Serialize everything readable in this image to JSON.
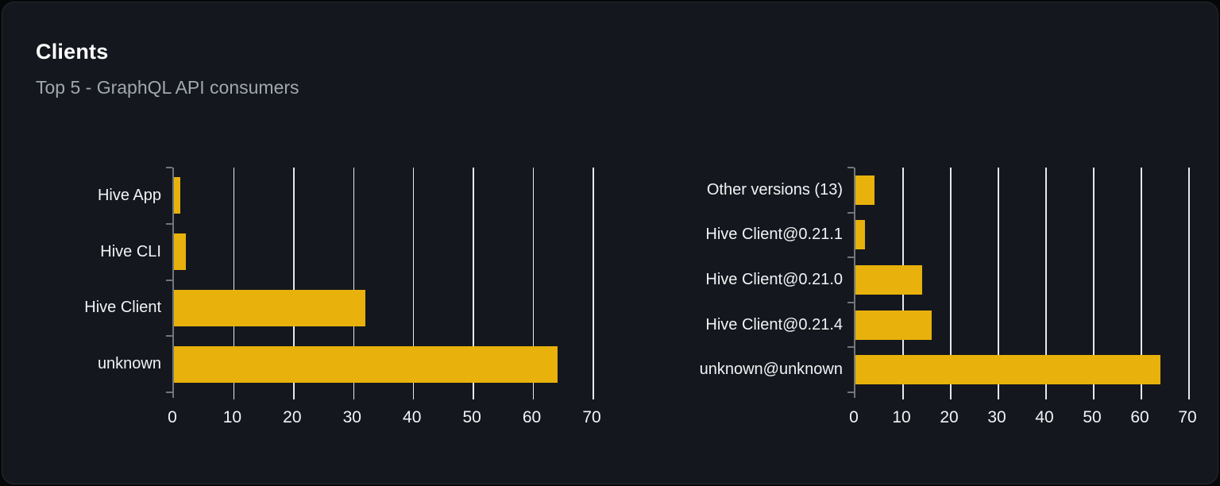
{
  "card": {
    "title": "Clients",
    "subtitle": "Top 5 - GraphQL API consumers"
  },
  "colors": {
    "page_bg": "#060709",
    "card_bg": "#14171d",
    "card_border": "#26292f",
    "title_text": "#ffffff",
    "subtitle_text": "#a2a7ae",
    "label_text": "#f2f3f5",
    "bar": "#e8b10b",
    "gridline": "#e6e8ed",
    "axis": "#71757c"
  },
  "chart_data": [
    {
      "type": "bar",
      "orientation": "horizontal",
      "name": "clients-by-name",
      "categories": [
        "Hive App",
        "Hive CLI",
        "Hive Client",
        "unknown"
      ],
      "values": [
        1,
        2,
        32,
        64
      ],
      "xlim": [
        0,
        70
      ],
      "xticks": [
        0,
        10,
        20,
        30,
        40,
        50,
        60,
        70
      ],
      "grid": true,
      "legend": false,
      "title": "",
      "xlabel": "",
      "ylabel": ""
    },
    {
      "type": "bar",
      "orientation": "horizontal",
      "name": "clients-by-version",
      "categories": [
        "Other versions (13)",
        "Hive Client@0.21.1",
        "Hive Client@0.21.0",
        "Hive Client@0.21.4",
        "unknown@unknown"
      ],
      "values": [
        4,
        2,
        14,
        16,
        64
      ],
      "xlim": [
        0,
        70
      ],
      "xticks": [
        0,
        10,
        20,
        30,
        40,
        50,
        60,
        70
      ],
      "grid": true,
      "legend": false,
      "title": "",
      "xlabel": "",
      "ylabel": ""
    }
  ]
}
